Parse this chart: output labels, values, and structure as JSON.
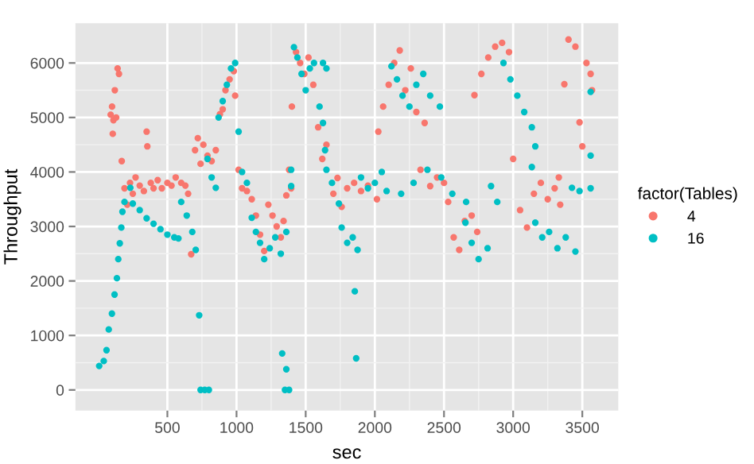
{
  "chart_data": {
    "type": "scatter",
    "xlabel": "sec",
    "ylabel": "Throughput",
    "legend_title": "factor(Tables)",
    "legend": "right",
    "grid": true,
    "marker": "circle",
    "xlim": [
      -165,
      3760
    ],
    "ylim": [
      -380,
      6730
    ],
    "xticks": [
      500,
      1000,
      1500,
      2000,
      2500,
      3000,
      3500
    ],
    "yticks": [
      0,
      1000,
      2000,
      3000,
      4000,
      5000,
      6000
    ],
    "series": [
      {
        "name": "4",
        "color": "#f8766d",
        "x": [
          90,
          100,
          105,
          110,
          120,
          130,
          140,
          150,
          170,
          190,
          210,
          230,
          250,
          270,
          300,
          330,
          350,
          355,
          380,
          400,
          430,
          460,
          500,
          530,
          560,
          600,
          630,
          650,
          672,
          700,
          720,
          740,
          760,
          790,
          820,
          850,
          880,
          900,
          920,
          950,
          980,
          990,
          1015,
          1040,
          1075,
          1110,
          1140,
          1170,
          1200,
          1230,
          1260,
          1290,
          1320,
          1340,
          1360,
          1380,
          1395,
          1400,
          1430,
          1460,
          1490,
          1520,
          1555,
          1590,
          1620,
          1650,
          1700,
          1730,
          1760,
          1800,
          1850,
          1900,
          1950,
          2015,
          2025,
          2060,
          2100,
          2140,
          2180,
          2220,
          2260,
          2300,
          2360,
          2330,
          2400,
          2450,
          2500,
          2530,
          2570,
          2610,
          2650,
          2700,
          2740,
          2720,
          2770,
          2820,
          2870,
          2920,
          2970,
          3000,
          3050,
          3100,
          3150,
          3200,
          3250,
          3300,
          3340,
          3330,
          3370,
          3400,
          3450,
          3480,
          3500,
          3530,
          3560,
          3570
        ],
        "values": [
          5050,
          5200,
          4700,
          4950,
          5500,
          5000,
          5900,
          5800,
          4200,
          3700,
          3400,
          3800,
          3600,
          3900,
          3750,
          3650,
          4740,
          4470,
          3800,
          3700,
          3850,
          3700,
          3800,
          3750,
          3900,
          3800,
          3750,
          3600,
          2490,
          4400,
          4620,
          4150,
          4500,
          4300,
          4200,
          4400,
          5060,
          5150,
          5500,
          5700,
          5850,
          5400,
          4040,
          3700,
          3650,
          3500,
          3200,
          2850,
          2550,
          3400,
          3200,
          3000,
          2800,
          3100,
          3570,
          4040,
          3700,
          5200,
          6200,
          6000,
          5800,
          6100,
          5600,
          4820,
          4240,
          4500,
          3600,
          3890,
          3360,
          3700,
          3800,
          3650,
          3750,
          3500,
          4740,
          5200,
          5600,
          6000,
          6230,
          5500,
          5900,
          5100,
          4900,
          4040,
          3740,
          3900,
          3800,
          3450,
          2800,
          2570,
          3100,
          3200,
          2900,
          5410,
          5800,
          6100,
          6300,
          6370,
          6200,
          4240,
          3300,
          2980,
          3600,
          3800,
          3500,
          3700,
          3400,
          3900,
          5610,
          6430,
          6300,
          4910,
          4470,
          6000,
          5800,
          5500
        ]
      },
      {
        "name": "16",
        "color": "#00bfc4",
        "x": [
          7,
          40,
          60,
          76,
          99,
          118,
          135,
          145,
          156,
          167,
          175,
          190,
          232,
          250,
          300,
          350,
          400,
          450,
          500,
          550,
          580,
          600,
          640,
          680,
          705,
          730,
          740,
          770,
          800,
          790,
          820,
          850,
          870,
          900,
          930,
          960,
          990,
          1015,
          1040,
          1075,
          1110,
          1140,
          1170,
          1200,
          1240,
          1280,
          1320,
          1360,
          1330,
          1360,
          1380,
          1350,
          1395,
          1395,
          1415,
          1440,
          1470,
          1500,
          1530,
          1560,
          1600,
          1625,
          1650,
          1625,
          1640,
          1650,
          1690,
          1740,
          1760,
          1800,
          1840,
          1875,
          1855,
          1865,
          1900,
          1950,
          2000,
          2050,
          2085,
          2120,
          2160,
          2200,
          2250,
          2300,
          2350,
          2400,
          2470,
          2190,
          2280,
          2380,
          2480,
          2560,
          2660,
          2655,
          2700,
          2750,
          2815,
          2840,
          2885,
          2930,
          2980,
          3030,
          3080,
          3135,
          3160,
          3135,
          3160,
          3210,
          3260,
          3320,
          3380,
          3450,
          3425,
          3480,
          3560,
          3560,
          3560
        ],
        "values": [
          440,
          530,
          730,
          1110,
          1400,
          1750,
          2050,
          2400,
          2690,
          2980,
          3270,
          3450,
          3710,
          3420,
          3300,
          3150,
          3050,
          2950,
          2850,
          2800,
          2780,
          3450,
          3200,
          2900,
          2570,
          1370,
          0,
          0,
          0,
          4240,
          3900,
          3710,
          5000,
          5300,
          5600,
          5900,
          6000,
          4740,
          4000,
          3800,
          3160,
          2900,
          2700,
          2400,
          2600,
          2800,
          2500,
          2900,
          670,
          380,
          0,
          0,
          3740,
          4040,
          6290,
          6100,
          5800,
          5500,
          5900,
          6000,
          5200,
          6000,
          5900,
          4900,
          4400,
          4040,
          3800,
          3420,
          2980,
          2700,
          2800,
          2570,
          1810,
          580,
          3900,
          3700,
          3800,
          4000,
          3650,
          5940,
          5700,
          5400,
          5200,
          5600,
          5800,
          5400,
          5200,
          3600,
          3800,
          4040,
          3900,
          3600,
          3450,
          3070,
          2700,
          2400,
          2600,
          3740,
          3450,
          6000,
          5700,
          5400,
          5100,
          4820,
          4470,
          4090,
          3070,
          2800,
          2900,
          2600,
          2800,
          2540,
          3710,
          3650,
          3700,
          5470,
          4300
        ]
      }
    ]
  }
}
